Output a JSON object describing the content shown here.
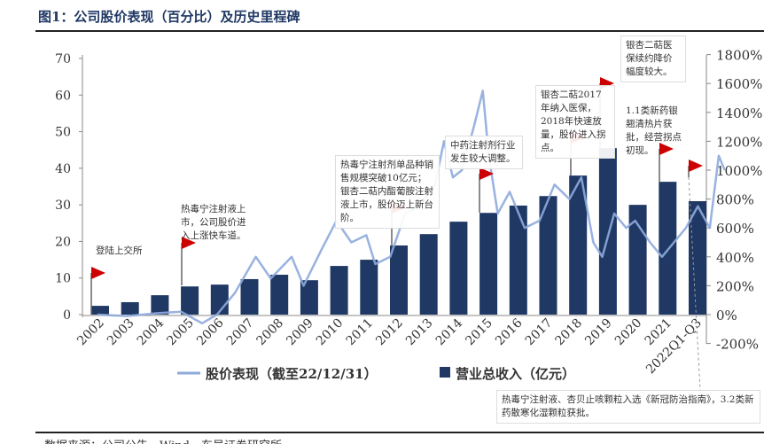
{
  "title": "图1：公司股价表现（百分比）及历史里程碑",
  "source": "数据来源：公司公告，Wind，东吴证券研究所",
  "colors": {
    "bar": "#1f3864",
    "line": "#8eaadb",
    "flag": "#cc0000"
  },
  "chart_data": {
    "type": "bar+line",
    "categories": [
      "2002",
      "2003",
      "2004",
      "2005",
      "2006",
      "2007",
      "2008",
      "2009",
      "2010",
      "2011",
      "2012",
      "2013",
      "2014",
      "2015",
      "2016",
      "2017",
      "2018",
      "2019",
      "2020",
      "2021",
      "2022Q1-Q3"
    ],
    "left_axis": {
      "ylim": [
        0,
        70
      ],
      "ticks": [
        0,
        10,
        20,
        30,
        40,
        50,
        60,
        70
      ]
    },
    "right_axis": {
      "ylim": [
        -200,
        1800
      ],
      "ticks": [
        "-200%",
        "0%",
        "200%",
        "400%",
        "600%",
        "800%",
        "1000%",
        "1200%",
        "1400%",
        "1600%",
        "1800%"
      ]
    },
    "grid": false,
    "legend_position": "bottom",
    "series": [
      {
        "name": "营业总收入（亿元）",
        "type": "bar",
        "axis": "left",
        "values": [
          2.4,
          3.4,
          5.3,
          7.7,
          8.2,
          9.7,
          10.9,
          9.4,
          13.3,
          15.0,
          18.9,
          22.0,
          25.4,
          27.8,
          29.8,
          32.4,
          38.0,
          45.5,
          30.0,
          36.3,
          31.0
        ]
      },
      {
        "name": "股价表现（截至22/12/31）",
        "type": "line",
        "axis": "right",
        "x": [
          2002.0,
          2003.0,
          2004.0,
          2004.8,
          2005.5,
          2006.0,
          2006.6,
          2007.3,
          2007.8,
          2008.5,
          2008.9,
          2009.5,
          2010.0,
          2010.5,
          2011.0,
          2011.3,
          2011.8,
          2012.3,
          2012.8,
          2013.3,
          2013.6,
          2013.9,
          2014.2,
          2014.6,
          2014.9,
          2015.1,
          2015.4,
          2015.8,
          2016.3,
          2016.8,
          2017.3,
          2017.8,
          2018.2,
          2018.6,
          2018.9,
          2019.3,
          2019.7,
          2020.0,
          2020.5,
          2020.9,
          2021.3,
          2021.7,
          2022.1,
          2022.5,
          2022.8,
          2023.0
        ],
        "y": [
          0,
          -10,
          10,
          20,
          -60,
          0,
          150,
          400,
          250,
          400,
          200,
          450,
          650,
          500,
          550,
          350,
          400,
          700,
          750,
          900,
          1200,
          950,
          1000,
          1300,
          1550,
          1100,
          700,
          850,
          600,
          650,
          900,
          800,
          950,
          500,
          400,
          700,
          600,
          650,
          500,
          400,
          500,
          600,
          750,
          600,
          1100,
          1000
        ]
      }
    ]
  },
  "annotations": [
    {
      "text": "登陆上交所",
      "year": 2002
    },
    {
      "text": "热毒宁注射液上市，公司股价进入上涨快车道。",
      "year": 2005
    },
    {
      "text": "热毒宁注射剂单品种销售规模突破10亿元；银杏二萜内酯葡胺注射液上市，股价迈上新台阶。",
      "year": 2012
    },
    {
      "text": "中药注射剂行业发生较大调整。",
      "year": 2015
    },
    {
      "text": "银杏二萜2017年纳入医保，2018年快速放量，股价进入拐点。",
      "year": 2018
    },
    {
      "text": "银杏二萜医保续约降价幅度较大。",
      "year": 2019
    },
    {
      "text": "1.1类新药银翘清热片获批，经营拐点初现。",
      "year": 2021
    },
    {
      "text": "热毒宁注射液、杏贝止咳颗粒入选《新冠防治指南》，3.2类新药散寒化湿颗粒获批。",
      "year": 2022
    }
  ]
}
